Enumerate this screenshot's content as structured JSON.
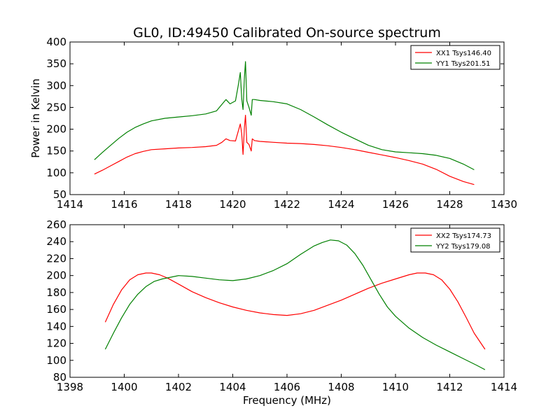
{
  "figure": {
    "title": "GL0, ID:49450 Calibrated On-source spectrum"
  },
  "chart_data": [
    {
      "type": "line",
      "title": "GL0, ID:49450 Calibrated On-source spectrum",
      "xlabel": "",
      "ylabel": "Power in Kelvin",
      "xlim": [
        1414,
        1430
      ],
      "ylim": [
        50,
        400
      ],
      "xticks": [
        1414,
        1416,
        1418,
        1420,
        1422,
        1424,
        1426,
        1428,
        1430
      ],
      "yticks": [
        50,
        100,
        150,
        200,
        250,
        300,
        350,
        400
      ],
      "grid": false,
      "legend_position": "top-right",
      "series": [
        {
          "name": "XX1 Tsys146.40",
          "color": "#ff0000",
          "x": [
            1414.9,
            1415.2,
            1415.5,
            1415.8,
            1416.1,
            1416.4,
            1416.7,
            1417.0,
            1417.5,
            1418.0,
            1418.5,
            1419.0,
            1419.4,
            1419.6,
            1419.75,
            1419.9,
            1420.1,
            1420.2,
            1420.28,
            1420.33,
            1420.38,
            1420.43,
            1420.47,
            1420.52,
            1420.6,
            1420.68,
            1420.72,
            1420.8,
            1421.0,
            1421.5,
            1422.0,
            1422.5,
            1423.0,
            1423.5,
            1424.0,
            1424.5,
            1425.0,
            1425.5,
            1426.0,
            1426.5,
            1427.0,
            1427.5,
            1428.0,
            1428.5,
            1428.9
          ],
          "y": [
            97,
            106,
            116,
            126,
            136,
            144,
            149,
            153,
            155,
            157,
            158,
            160,
            163,
            170,
            178,
            174,
            173,
            195,
            212,
            190,
            142,
            205,
            232,
            170,
            165,
            150,
            178,
            174,
            172,
            170,
            168,
            167,
            165,
            162,
            158,
            153,
            147,
            141,
            135,
            128,
            120,
            108,
            92,
            80,
            73
          ]
        },
        {
          "name": "YY1 Tsys201.51",
          "color": "#008000",
          "x": [
            1414.9,
            1415.2,
            1415.5,
            1415.8,
            1416.1,
            1416.4,
            1416.7,
            1417.0,
            1417.5,
            1418.0,
            1418.5,
            1419.0,
            1419.4,
            1419.6,
            1419.75,
            1419.9,
            1420.1,
            1420.2,
            1420.28,
            1420.33,
            1420.38,
            1420.43,
            1420.47,
            1420.52,
            1420.6,
            1420.68,
            1420.72,
            1420.8,
            1421.0,
            1421.5,
            1422.0,
            1422.5,
            1423.0,
            1423.5,
            1424.0,
            1424.5,
            1425.0,
            1425.5,
            1426.0,
            1426.5,
            1427.0,
            1427.5,
            1428.0,
            1428.5,
            1428.9
          ],
          "y": [
            130,
            147,
            163,
            179,
            193,
            204,
            212,
            219,
            225,
            228,
            231,
            235,
            242,
            257,
            268,
            258,
            265,
            300,
            330,
            270,
            245,
            320,
            355,
            265,
            250,
            232,
            268,
            268,
            266,
            263,
            258,
            245,
            228,
            210,
            193,
            178,
            163,
            153,
            148,
            146,
            144,
            140,
            133,
            120,
            107
          ]
        }
      ]
    },
    {
      "type": "line",
      "title": "",
      "xlabel": "Frequency (MHz)",
      "ylabel": "",
      "xlim": [
        1398,
        1414
      ],
      "ylim": [
        80,
        260
      ],
      "xticks": [
        1398,
        1400,
        1402,
        1404,
        1406,
        1408,
        1410,
        1412,
        1414
      ],
      "yticks": [
        80,
        100,
        120,
        140,
        160,
        180,
        200,
        220,
        240,
        260
      ],
      "grid": false,
      "legend_position": "top-right",
      "series": [
        {
          "name": "XX2 Tsys174.73",
          "color": "#ff0000",
          "x": [
            1399.3,
            1399.6,
            1399.9,
            1400.2,
            1400.5,
            1400.8,
            1401.0,
            1401.3,
            1401.6,
            1402.0,
            1402.5,
            1403.0,
            1403.5,
            1404.0,
            1404.5,
            1405.0,
            1405.5,
            1406.0,
            1406.5,
            1407.0,
            1407.5,
            1408.0,
            1408.5,
            1409.0,
            1409.5,
            1410.0,
            1410.5,
            1410.8,
            1411.1,
            1411.4,
            1411.7,
            1412.0,
            1412.3,
            1412.6,
            1412.9,
            1413.3
          ],
          "y": [
            145,
            166,
            183,
            195,
            201,
            203,
            203,
            201,
            197,
            190,
            181,
            174,
            168,
            163,
            159,
            156,
            154,
            153,
            155,
            159,
            165,
            171,
            178,
            185,
            191,
            196,
            201,
            203,
            203,
            201,
            195,
            184,
            169,
            151,
            132,
            113
          ]
        },
        {
          "name": "YY2 Tsys179.08",
          "color": "#008000",
          "x": [
            1399.3,
            1399.6,
            1399.9,
            1400.2,
            1400.5,
            1400.8,
            1401.1,
            1401.4,
            1401.7,
            1402.0,
            1402.5,
            1403.0,
            1403.5,
            1404.0,
            1404.5,
            1405.0,
            1405.5,
            1406.0,
            1406.5,
            1407.0,
            1407.3,
            1407.6,
            1407.9,
            1408.2,
            1408.5,
            1408.8,
            1409.1,
            1409.4,
            1409.7,
            1410.0,
            1410.5,
            1411.0,
            1411.5,
            1412.0,
            1412.5,
            1413.0,
            1413.3
          ],
          "y": [
            113,
            132,
            150,
            166,
            178,
            187,
            193,
            196,
            198,
            200,
            199,
            197,
            195,
            194,
            196,
            200,
            206,
            214,
            225,
            235,
            239,
            242,
            241,
            236,
            226,
            212,
            195,
            178,
            163,
            152,
            138,
            127,
            118,
            110,
            102,
            94,
            89
          ]
        }
      ]
    }
  ]
}
